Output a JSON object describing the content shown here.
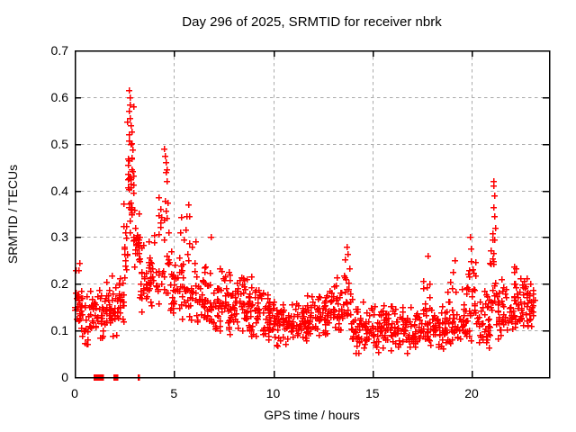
{
  "window": {
    "background": "#ffffff"
  },
  "chart_data": {
    "type": "scatter",
    "title": "Day 296 of 2025, SRMTID for receiver nbrk",
    "xlabel": "GPS time / hours",
    "ylabel": "SRMTID / TECUs",
    "xlim": [
      0,
      23.9
    ],
    "ylim": [
      0,
      0.7
    ],
    "x_ticks": [
      0,
      5,
      10,
      15,
      20
    ],
    "y_ticks": [
      0,
      0.1,
      0.2,
      0.3,
      0.4,
      0.5,
      0.6,
      0.7
    ],
    "grid": true,
    "grid_color": "#aaaaaa",
    "marker": {
      "symbol": "plus",
      "color": "#ff0000",
      "size": 7
    },
    "series": [
      {
        "name": "SRMTID"
      }
    ],
    "description": "Dense scatter of ~1400 red plus markers; bulk between 0.08 and 0.25 TECUs, large spike to 0.61 near hour 2.8, secondary spikes near hours 4.5 (0.49), 5.7 (0.37), 13.7 (0.28), 19.9 (0.30) and 21.1 (0.42); a few samples at exactly 0 between hours 1 and 3.2; data ends near hour 23.2",
    "density_bins": [
      [
        0.0,
        0.3,
        24,
        0.1,
        0.17,
        0.26
      ],
      [
        0.3,
        0.7,
        22,
        0.06,
        0.13,
        0.21
      ],
      [
        0.7,
        1.1,
        24,
        0.07,
        0.13,
        0.22
      ],
      [
        1.1,
        1.6,
        28,
        0.07,
        0.13,
        0.25
      ],
      [
        1.6,
        2.1,
        30,
        0.08,
        0.15,
        0.24
      ],
      [
        2.1,
        2.45,
        24,
        0.1,
        0.17,
        0.27
      ],
      [
        2.45,
        2.65,
        16,
        0.15,
        0.26,
        0.4
      ],
      [
        2.65,
        2.95,
        34,
        0.28,
        0.42,
        0.61
      ],
      [
        2.95,
        3.25,
        26,
        0.2,
        0.29,
        0.37
      ],
      [
        3.25,
        3.7,
        26,
        0.13,
        0.2,
        0.3
      ],
      [
        3.7,
        4.2,
        30,
        0.14,
        0.21,
        0.32
      ],
      [
        4.2,
        4.75,
        30,
        0.16,
        0.26,
        0.49
      ],
      [
        4.75,
        5.3,
        30,
        0.12,
        0.19,
        0.29
      ],
      [
        5.3,
        6.1,
        44,
        0.11,
        0.2,
        0.37
      ],
      [
        6.1,
        6.7,
        36,
        0.1,
        0.17,
        0.26
      ],
      [
        6.7,
        7.3,
        36,
        0.08,
        0.15,
        0.24
      ],
      [
        7.3,
        8.0,
        42,
        0.08,
        0.15,
        0.25
      ],
      [
        8.0,
        8.7,
        42,
        0.09,
        0.16,
        0.24
      ],
      [
        8.7,
        9.4,
        42,
        0.08,
        0.15,
        0.22
      ],
      [
        9.4,
        10.0,
        38,
        0.07,
        0.13,
        0.2
      ],
      [
        10.0,
        10.7,
        40,
        0.06,
        0.12,
        0.18
      ],
      [
        10.7,
        11.4,
        40,
        0.06,
        0.11,
        0.17
      ],
      [
        11.4,
        12.1,
        40,
        0.07,
        0.12,
        0.19
      ],
      [
        12.1,
        12.8,
        40,
        0.07,
        0.13,
        0.2
      ],
      [
        12.8,
        13.5,
        40,
        0.08,
        0.14,
        0.22
      ],
      [
        13.5,
        13.9,
        20,
        0.1,
        0.17,
        0.28
      ],
      [
        13.9,
        14.6,
        40,
        0.04,
        0.11,
        0.18
      ],
      [
        14.6,
        15.3,
        40,
        0.04,
        0.1,
        0.16
      ],
      [
        15.3,
        16.0,
        40,
        0.05,
        0.11,
        0.17
      ],
      [
        16.0,
        16.7,
        40,
        0.05,
        0.11,
        0.17
      ],
      [
        16.7,
        17.4,
        40,
        0.05,
        0.1,
        0.16
      ],
      [
        17.4,
        18.0,
        34,
        0.05,
        0.11,
        0.26
      ],
      [
        18.0,
        18.7,
        40,
        0.05,
        0.1,
        0.16
      ],
      [
        18.7,
        19.3,
        34,
        0.06,
        0.12,
        0.25
      ],
      [
        19.3,
        19.8,
        28,
        0.06,
        0.12,
        0.2
      ],
      [
        19.8,
        20.2,
        26,
        0.07,
        0.15,
        0.27
      ],
      [
        20.2,
        20.9,
        38,
        0.05,
        0.12,
        0.22
      ],
      [
        20.9,
        21.3,
        24,
        0.1,
        0.18,
        0.36
      ],
      [
        21.3,
        22.0,
        40,
        0.07,
        0.13,
        0.22
      ],
      [
        22.0,
        22.6,
        40,
        0.08,
        0.15,
        0.25
      ],
      [
        22.6,
        23.2,
        34,
        0.09,
        0.15,
        0.22
      ]
    ],
    "zero_value_runs": [
      [
        0.95,
        1.3,
        16
      ],
      [
        1.36,
        1.4,
        2
      ],
      [
        1.97,
        2.03,
        3
      ],
      [
        2.08,
        2.12,
        2
      ],
      [
        3.18,
        3.24,
        3
      ]
    ],
    "peak_points": [
      [
        2.7,
        0.57
      ],
      [
        2.72,
        0.615
      ],
      [
        2.74,
        0.52
      ],
      [
        2.75,
        0.6
      ],
      [
        2.76,
        0.555
      ],
      [
        2.78,
        0.585
      ],
      [
        2.8,
        0.54
      ],
      [
        2.82,
        0.5
      ],
      [
        2.85,
        0.47
      ],
      [
        4.5,
        0.49
      ],
      [
        4.53,
        0.475
      ],
      [
        4.56,
        0.46
      ],
      [
        4.6,
        0.44
      ],
      [
        4.64,
        0.42
      ],
      [
        5.72,
        0.37
      ],
      [
        5.78,
        0.345
      ],
      [
        6.85,
        0.3
      ],
      [
        13.7,
        0.28
      ],
      [
        13.74,
        0.265
      ],
      [
        17.78,
        0.26
      ],
      [
        19.12,
        0.25
      ],
      [
        19.93,
        0.3
      ],
      [
        19.95,
        0.275
      ],
      [
        21.08,
        0.42
      ],
      [
        21.1,
        0.41
      ],
      [
        21.12,
        0.39
      ],
      [
        21.1,
        0.365
      ],
      [
        21.14,
        0.345
      ],
      [
        21.18,
        0.32
      ],
      [
        21.05,
        0.295
      ]
    ],
    "seed": 1296
  }
}
